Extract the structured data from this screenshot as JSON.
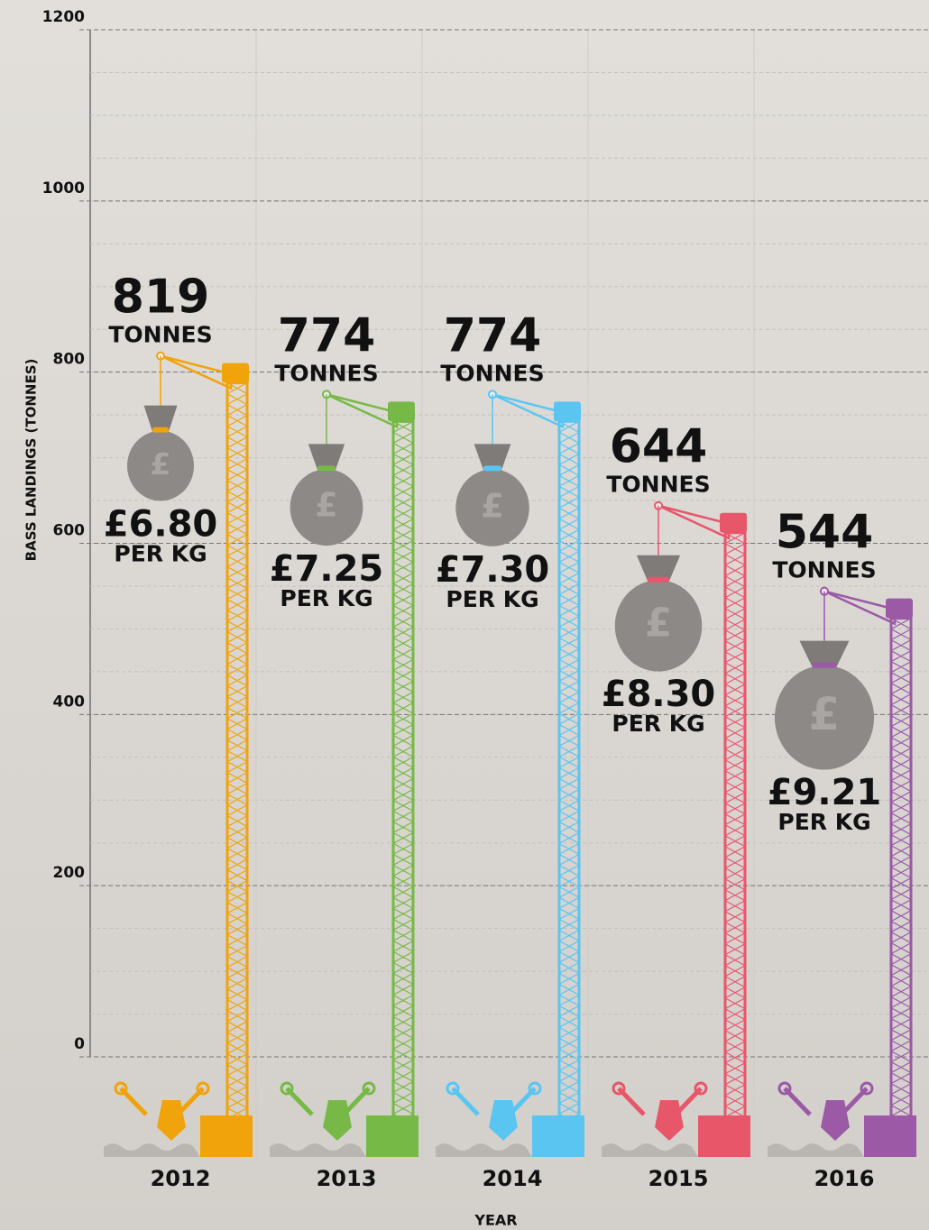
{
  "chart_data": {
    "type": "crane",
    "y_axis_label": "BASS LANDINGS (TONNES)",
    "x_axis_label": "YEAR",
    "categories": [
      "2012",
      "2013",
      "2014",
      "2015",
      "2016"
    ],
    "values": [
      819,
      774,
      774,
      644,
      544
    ],
    "value_unit": "TONNES",
    "colors": [
      "#f0a30a",
      "#76b947",
      "#5bc5f2",
      "#e8566a",
      "#9b59a6"
    ],
    "prices": {
      "values": [
        6.8,
        7.25,
        7.3,
        8.3,
        9.21
      ],
      "value_labels": [
        "£6.80",
        "£7.25",
        "£7.30",
        "£8.30",
        "£9.21"
      ],
      "unit": "PER KG"
    },
    "ylim": [
      0,
      1200
    ],
    "yticks": [
      0,
      200,
      400,
      600,
      800,
      1000,
      1200
    ],
    "grid": true
  }
}
